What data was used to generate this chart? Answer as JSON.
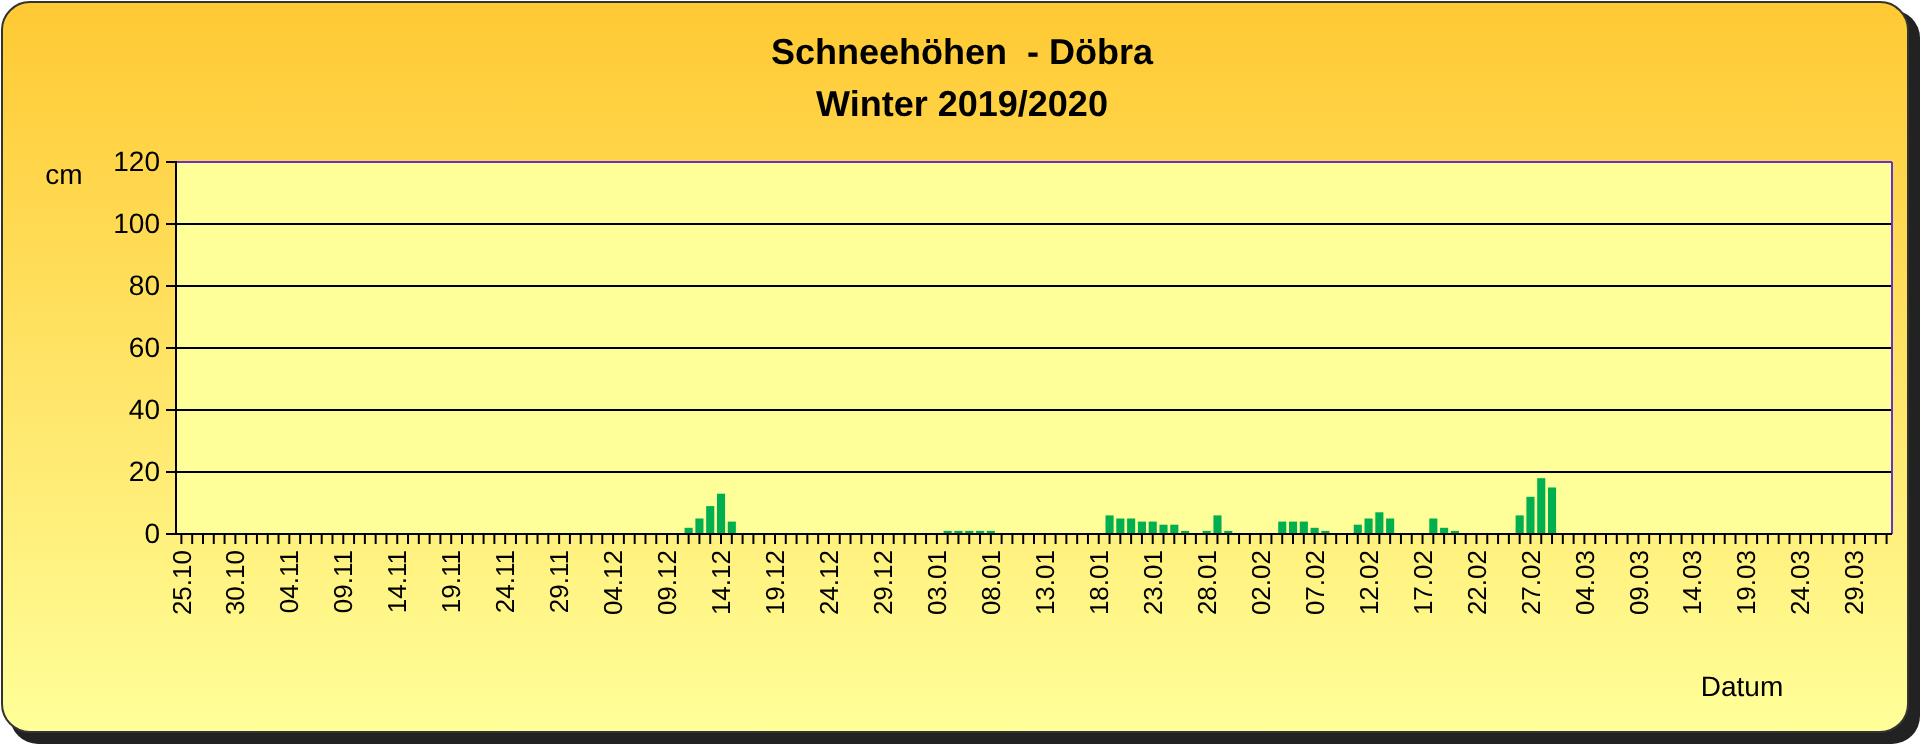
{
  "chart_data": {
    "type": "bar",
    "title": "Schneehöhen  - Döbra",
    "subtitle": "Winter 2019/2020",
    "xlabel": "Datum",
    "ylabel": "cm",
    "categories": [
      "25.10",
      null,
      null,
      null,
      null,
      "30.10",
      null,
      null,
      null,
      null,
      "04.11",
      null,
      null,
      null,
      null,
      "09.11",
      null,
      null,
      null,
      null,
      "14.11",
      null,
      null,
      null,
      null,
      "19.11",
      null,
      null,
      null,
      null,
      "24.11",
      null,
      null,
      null,
      null,
      "29.11",
      null,
      null,
      null,
      null,
      "04.12",
      null,
      null,
      null,
      null,
      "09.12",
      null,
      null,
      null,
      null,
      "14.12",
      null,
      null,
      null,
      null,
      "19.12",
      null,
      null,
      null,
      null,
      "24.12",
      null,
      null,
      null,
      null,
      "29.12",
      null,
      null,
      null,
      null,
      "03.01",
      null,
      null,
      null,
      null,
      "08.01",
      null,
      null,
      null,
      null,
      "13.01",
      null,
      null,
      null,
      null,
      "18.01",
      null,
      null,
      null,
      null,
      "23.01",
      null,
      null,
      null,
      null,
      "28.01",
      null,
      null,
      null,
      null,
      "02.02",
      null,
      null,
      null,
      null,
      "07.02",
      null,
      null,
      null,
      null,
      "12.02",
      null,
      null,
      null,
      null,
      "17.02",
      null,
      null,
      null,
      null,
      "22.02",
      null,
      null,
      null,
      null,
      "27.02",
      null,
      null,
      null,
      null,
      "04.03",
      null,
      null,
      null,
      null,
      "09.03",
      null,
      null,
      null,
      null,
      "14.03",
      null,
      null,
      null,
      null,
      "19.03",
      null,
      null,
      null,
      null,
      "24.03",
      null,
      null,
      null,
      null,
      "29.03",
      null,
      null,
      null
    ],
    "values": [
      0,
      0,
      0,
      0,
      0,
      0,
      0,
      0,
      0,
      0,
      0,
      0,
      0,
      0,
      0,
      0,
      0,
      0,
      0,
      0,
      0,
      0,
      0,
      0,
      0,
      0,
      0,
      0,
      0,
      0,
      0,
      0,
      0,
      0,
      0,
      0,
      0,
      0,
      0,
      0,
      0,
      0,
      0,
      0,
      0,
      0,
      0,
      2,
      5,
      9,
      13,
      4,
      0,
      0,
      0,
      0,
      0,
      0,
      0,
      0,
      0,
      0,
      0,
      0,
      0,
      0,
      0,
      0,
      0,
      0,
      0,
      1,
      1,
      1,
      1,
      1,
      0,
      0,
      0,
      0,
      0,
      0,
      0,
      0,
      0,
      0,
      6,
      5,
      5,
      4,
      4,
      3,
      3,
      1,
      0,
      1,
      6,
      1,
      0,
      0,
      0,
      0,
      4,
      4,
      4,
      2,
      1,
      0,
      0,
      3,
      5,
      7,
      5,
      0,
      0,
      0,
      5,
      2,
      1,
      0,
      0,
      0,
      0,
      0,
      6,
      12,
      18,
      15,
      0,
      0,
      0,
      0,
      0,
      0,
      0,
      0,
      0,
      0,
      0,
      0,
      0,
      0,
      0,
      0,
      0,
      0,
      0,
      0,
      0,
      0,
      0,
      0,
      0,
      0,
      0,
      0,
      0,
      0,
      0
    ],
    "color": "#00b050",
    "ylim": [
      0,
      120
    ],
    "yticks": [
      0,
      20,
      40,
      60,
      80,
      100,
      120
    ],
    "grid": "y"
  }
}
